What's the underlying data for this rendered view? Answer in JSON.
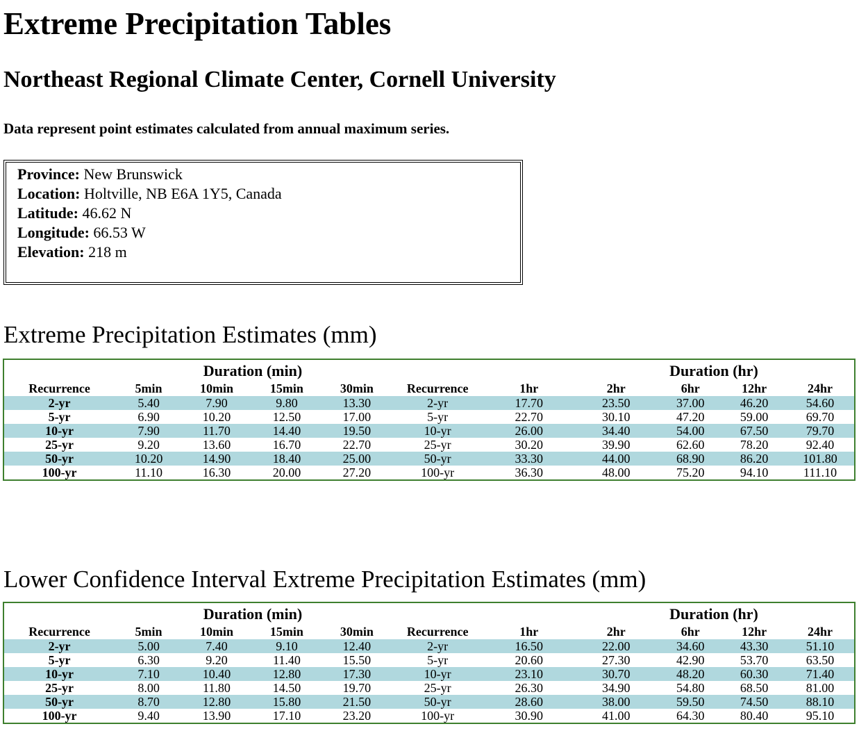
{
  "page": {
    "title": "Extreme Precipitation Tables",
    "subtitle": "Northeast Regional Climate Center, Cornell University",
    "note": "Data represent point estimates calculated from annual maximum series."
  },
  "location_info": {
    "province_label": "Province:",
    "province": "New Brunswick",
    "location_label": "Location:",
    "location": "Holtville, NB E6A 1Y5, Canada",
    "latitude_label": "Latitude:",
    "latitude": "46.62 N",
    "longitude_label": "Longitude:",
    "longitude": "66.53 W",
    "elevation_label": "Elevation:",
    "elevation": "218 m"
  },
  "colors": {
    "shaded_row": "#b0d8de",
    "table_border": "#3e7f2e"
  },
  "tables": [
    {
      "id": "estimates",
      "title": "Extreme Precipitation Estimates (mm)",
      "group_min": "Duration (min)",
      "group_hr": "Duration (hr)",
      "headers": [
        "Recurrence",
        "5min",
        "10min",
        "15min",
        "30min",
        "Recurrence",
        "1hr",
        "2hr",
        "6hr",
        "12hr",
        "24hr"
      ],
      "rows": [
        [
          "2-yr",
          "5.40",
          "7.90",
          "9.80",
          "13.30",
          "2-yr",
          "17.70",
          "23.50",
          "37.00",
          "46.20",
          "54.60"
        ],
        [
          "5-yr",
          "6.90",
          "10.20",
          "12.50",
          "17.00",
          "5-yr",
          "22.70",
          "30.10",
          "47.20",
          "59.00",
          "69.70"
        ],
        [
          "10-yr",
          "7.90",
          "11.70",
          "14.40",
          "19.50",
          "10-yr",
          "26.00",
          "34.40",
          "54.00",
          "67.50",
          "79.70"
        ],
        [
          "25-yr",
          "9.20",
          "13.60",
          "16.70",
          "22.70",
          "25-yr",
          "30.20",
          "39.90",
          "62.60",
          "78.20",
          "92.40"
        ],
        [
          "50-yr",
          "10.20",
          "14.90",
          "18.40",
          "25.00",
          "50-yr",
          "33.30",
          "44.00",
          "68.90",
          "86.20",
          "101.80"
        ],
        [
          "100-yr",
          "11.10",
          "16.30",
          "20.00",
          "27.20",
          "100-yr",
          "36.30",
          "48.00",
          "75.20",
          "94.10",
          "111.10"
        ]
      ]
    },
    {
      "id": "lower-ci",
      "title": "Lower Confidence Interval Extreme Precipitation Estimates (mm)",
      "group_min": "Duration (min)",
      "group_hr": "Duration (hr)",
      "headers": [
        "Recurrence",
        "5min",
        "10min",
        "15min",
        "30min",
        "Recurrence",
        "1hr",
        "2hr",
        "6hr",
        "12hr",
        "24hr"
      ],
      "rows": [
        [
          "2-yr",
          "5.00",
          "7.40",
          "9.10",
          "12.40",
          "2-yr",
          "16.50",
          "22.00",
          "34.60",
          "43.30",
          "51.10"
        ],
        [
          "5-yr",
          "6.30",
          "9.20",
          "11.40",
          "15.50",
          "5-yr",
          "20.60",
          "27.30",
          "42.90",
          "53.70",
          "63.50"
        ],
        [
          "10-yr",
          "7.10",
          "10.40",
          "12.80",
          "17.30",
          "10-yr",
          "23.10",
          "30.70",
          "48.20",
          "60.30",
          "71.40"
        ],
        [
          "25-yr",
          "8.00",
          "11.80",
          "14.50",
          "19.70",
          "25-yr",
          "26.30",
          "34.90",
          "54.80",
          "68.50",
          "81.00"
        ],
        [
          "50-yr",
          "8.70",
          "12.80",
          "15.80",
          "21.50",
          "50-yr",
          "28.60",
          "38.00",
          "59.50",
          "74.50",
          "88.10"
        ],
        [
          "100-yr",
          "9.40",
          "13.90",
          "17.10",
          "23.20",
          "100-yr",
          "30.90",
          "41.00",
          "64.30",
          "80.40",
          "95.10"
        ]
      ]
    }
  ]
}
